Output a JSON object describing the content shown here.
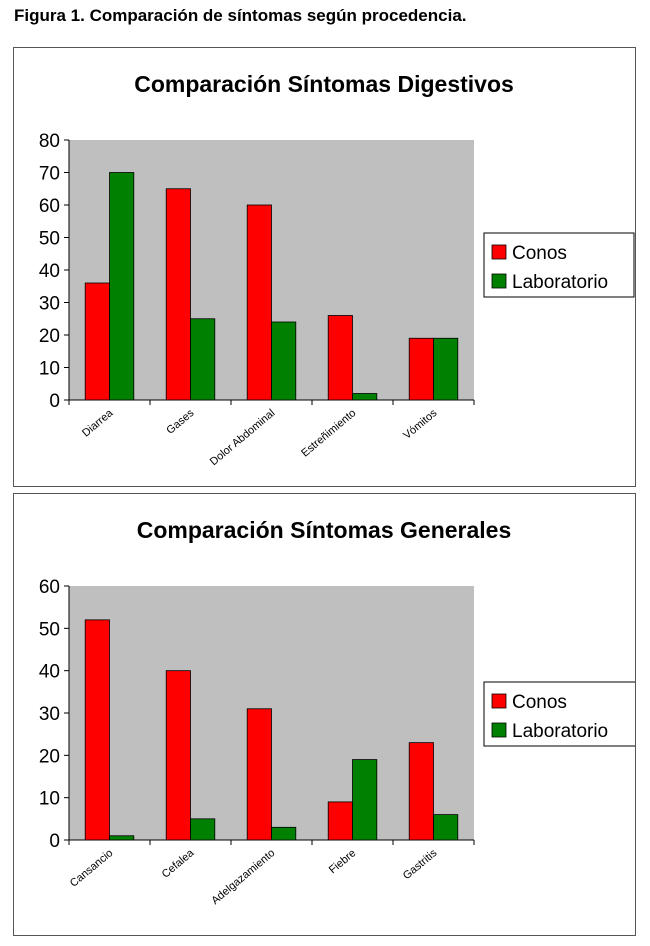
{
  "figure_caption": "Figura 1. Comparación de síntomas según procedencia.",
  "colors": {
    "conos": "#ff0000",
    "laboratorio": "#008000",
    "plot_bg": "#c0bfbf"
  },
  "chart_data": [
    {
      "type": "bar",
      "title": "Comparación Síntomas Digestivos",
      "xlabel": "",
      "ylabel": "",
      "categories": [
        "Diarrea",
        "Gases",
        "Dolor Abdominal",
        "Estreñimiento",
        "Vómitos"
      ],
      "series": [
        {
          "name": "Conos",
          "values": [
            36,
            65,
            60,
            26,
            19
          ]
        },
        {
          "name": "Laboratorio",
          "values": [
            70,
            25,
            24,
            2,
            19
          ]
        }
      ],
      "ylim": [
        0,
        80
      ],
      "yticks": [
        "0",
        "10",
        "20",
        "30",
        "40",
        "50",
        "60",
        "70",
        "80"
      ],
      "grid": false,
      "legend_position": "right"
    },
    {
      "type": "bar",
      "title": "Comparación Síntomas Generales",
      "xlabel": "",
      "ylabel": "",
      "categories": [
        "Cansancio",
        "Cefalea",
        "Adelgazamiento",
        "Fiebre",
        "Gastritis"
      ],
      "series": [
        {
          "name": "Conos",
          "values": [
            52,
            40,
            31,
            9,
            23
          ]
        },
        {
          "name": "Laboratorio",
          "values": [
            1,
            5,
            3,
            19,
            6
          ]
        }
      ],
      "ylim": [
        0,
        60
      ],
      "yticks": [
        "0",
        "10",
        "20",
        "30",
        "40",
        "50",
        "60"
      ],
      "grid": false,
      "legend_position": "right"
    }
  ]
}
